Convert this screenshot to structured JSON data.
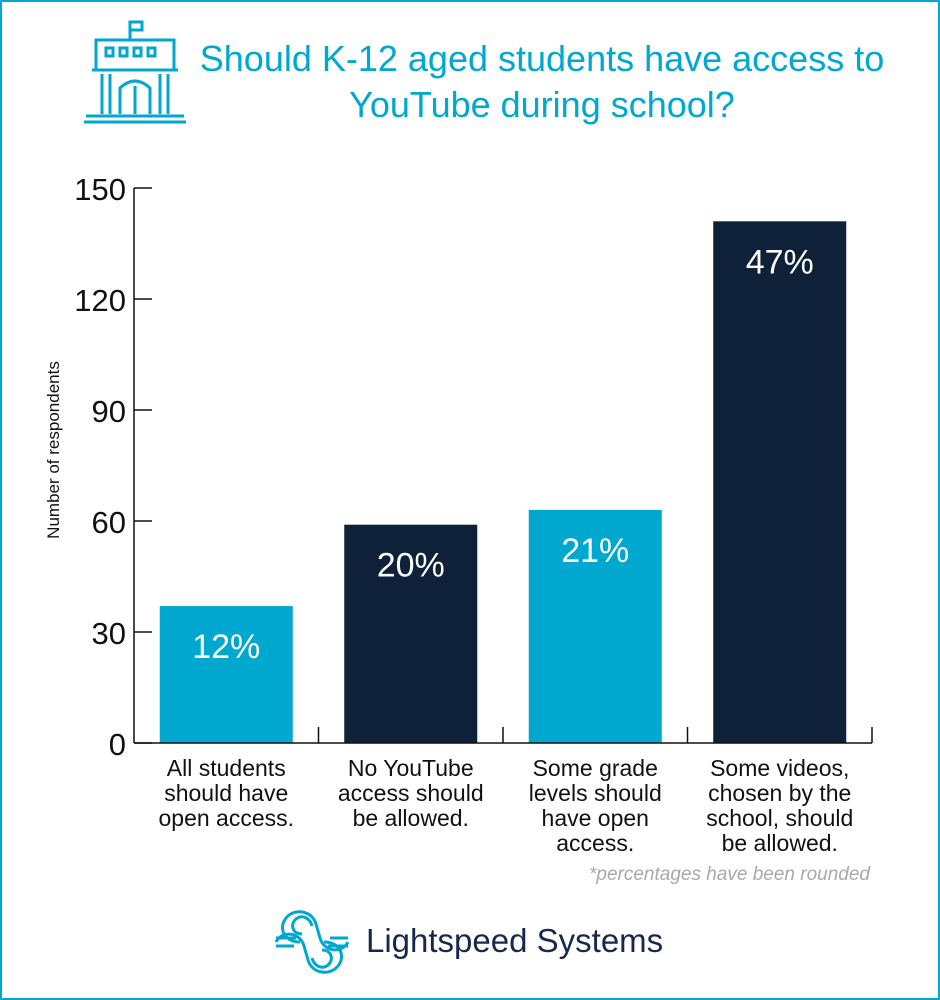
{
  "header": {
    "title": "Should K-12 aged students have access to YouTube during school?"
  },
  "chart_data": {
    "type": "bar",
    "title": "Should K-12 aged students have access to YouTube during school?",
    "ylabel": "Number of respondents",
    "xlabel": "",
    "ylim": [
      0,
      150
    ],
    "yticks": [
      0,
      30,
      60,
      90,
      120,
      150
    ],
    "categories": [
      "All students should have open access.",
      "No YouTube access should be allowed.",
      "Some grade levels should have open access.",
      "Some videos, chosen by the school, should be allowed."
    ],
    "category_lines": [
      [
        "All students",
        "should have",
        "open access."
      ],
      [
        "No YouTube",
        "access should",
        "be allowed."
      ],
      [
        "Some grade",
        "levels should",
        "have open",
        "access."
      ],
      [
        "Some videos,",
        "chosen by the",
        "school, should",
        "be allowed."
      ]
    ],
    "values": [
      37,
      59,
      63,
      141
    ],
    "data_labels": [
      "12%",
      "20%",
      "21%",
      "47%"
    ],
    "bar_colors": [
      "#00a7cf",
      "#0e2139",
      "#00a7cf",
      "#0e2139"
    ],
    "grid": false,
    "footnote": "*percentages have been rounded"
  },
  "brand": {
    "name": "Lightspeed Systems",
    "text_color": "#17284d",
    "accent_color": "#00a7cf"
  }
}
